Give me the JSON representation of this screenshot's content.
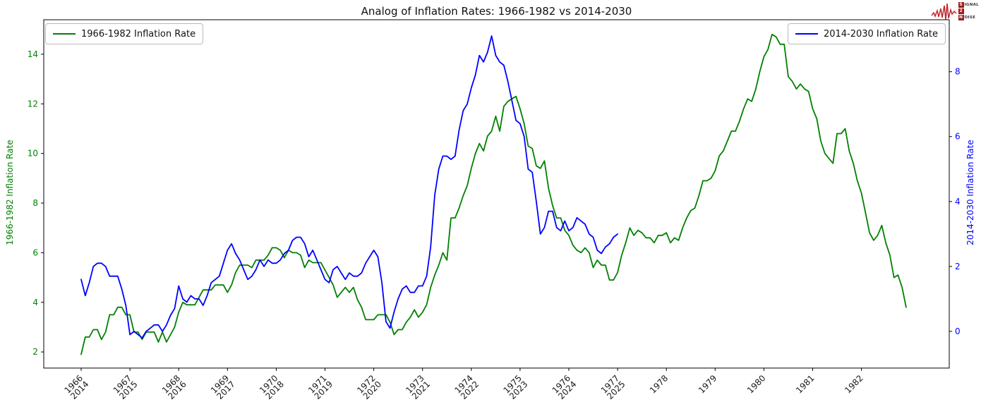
{
  "logo": {
    "line1": {
      "initial": "S",
      "rest": "IGNAL"
    },
    "line2": {
      "initial": "2",
      "rest": ""
    },
    "line3": {
      "initial": "N",
      "rest": "OISE"
    }
  },
  "chart_data": {
    "type": "line",
    "title": "Analog of Inflation Rates: 1966-1982 vs 2014-2030",
    "grid": false,
    "legend": [
      {
        "label": "1966-1982 Inflation Rate",
        "position": "upper left",
        "color": "#008000"
      },
      {
        "label": "2014-2030 Inflation Rate",
        "position": "upper right",
        "color": "#0000ff"
      }
    ],
    "left_axis": {
      "label": "1966-1982 Inflation Rate",
      "color": "#008000",
      "ticks": [
        2,
        4,
        6,
        8,
        10,
        12,
        14
      ],
      "range": [
        1.35,
        15.39
      ]
    },
    "right_axis": {
      "label": "2014-2030 Inflation Rate",
      "color": "#0000ff",
      "ticks": [
        0,
        2,
        4,
        6,
        8
      ],
      "range": [
        -1.13,
        9.6
      ]
    },
    "x_axis": {
      "tick_labels": [
        [
          "1966",
          "2014"
        ],
        [
          "1967",
          "2015"
        ],
        [
          "1968",
          "2016"
        ],
        [
          "1969",
          "2017"
        ],
        [
          "1970",
          "2018"
        ],
        [
          "1971",
          "2019"
        ],
        [
          "1972",
          "2020"
        ],
        [
          "1973",
          "2021"
        ],
        [
          "1974",
          "2022"
        ],
        [
          "1975",
          "2023"
        ],
        [
          "1976",
          "2024"
        ],
        [
          "1977",
          "2025"
        ],
        [
          "1978"
        ],
        [
          "1979"
        ],
        [
          "1980"
        ],
        [
          "1981"
        ],
        [
          "1982"
        ]
      ]
    },
    "series": [
      {
        "name": "1966-1982 Inflation Rate",
        "axis": "left",
        "color": "#008000",
        "start": "1966-01",
        "frequency": "monthly",
        "values": [
          1.9,
          2.6,
          2.6,
          2.9,
          2.9,
          2.5,
          2.8,
          3.5,
          3.5,
          3.8,
          3.8,
          3.5,
          3.5,
          2.8,
          2.8,
          2.5,
          2.8,
          2.8,
          2.8,
          2.4,
          2.8,
          2.4,
          2.7,
          3.0,
          3.6,
          4.0,
          3.9,
          3.9,
          3.9,
          4.2,
          4.5,
          4.5,
          4.5,
          4.7,
          4.7,
          4.7,
          4.4,
          4.7,
          5.2,
          5.5,
          5.5,
          5.5,
          5.4,
          5.7,
          5.7,
          5.7,
          5.9,
          6.2,
          6.2,
          6.1,
          5.8,
          6.1,
          6.0,
          6.0,
          5.9,
          5.4,
          5.7,
          5.6,
          5.6,
          5.6,
          5.3,
          5.0,
          4.7,
          4.2,
          4.4,
          4.6,
          4.4,
          4.6,
          4.1,
          3.8,
          3.3,
          3.3,
          3.3,
          3.5,
          3.5,
          3.5,
          3.2,
          2.7,
          2.9,
          2.9,
          3.2,
          3.4,
          3.7,
          3.4,
          3.6,
          3.9,
          4.6,
          5.1,
          5.5,
          6.0,
          5.7,
          7.4,
          7.4,
          7.8,
          8.3,
          8.7,
          9.4,
          10.0,
          10.4,
          10.1,
          10.7,
          10.9,
          11.5,
          10.9,
          11.9,
          12.1,
          12.2,
          12.3,
          11.8,
          11.2,
          10.3,
          10.2,
          9.5,
          9.4,
          9.7,
          8.6,
          7.9,
          7.4,
          7.4,
          6.9,
          6.7,
          6.3,
          6.1,
          6.0,
          6.2,
          6.0,
          5.4,
          5.7,
          5.5,
          5.5,
          4.9,
          4.9,
          5.2,
          5.9,
          6.4,
          7.0,
          6.7,
          6.9,
          6.8,
          6.6,
          6.6,
          6.4,
          6.7,
          6.7,
          6.8,
          6.4,
          6.6,
          6.5,
          7.0,
          7.4,
          7.7,
          7.8,
          8.3,
          8.9,
          8.9,
          9.0,
          9.3,
          9.9,
          10.1,
          10.5,
          10.9,
          10.9,
          11.3,
          11.8,
          12.2,
          12.1,
          12.6,
          13.3,
          13.9,
          14.2,
          14.8,
          14.7,
          14.4,
          14.4,
          13.1,
          12.9,
          12.6,
          12.8,
          12.6,
          12.5,
          11.8,
          11.4,
          10.5,
          10.0,
          9.8,
          9.6,
          10.8,
          10.8,
          11.0,
          10.1,
          9.6,
          8.9,
          8.4,
          7.6,
          6.8,
          6.5,
          6.7,
          7.1,
          6.4,
          5.9,
          5.0,
          5.1,
          4.6,
          3.8
        ]
      },
      {
        "name": "2014-2030 Inflation Rate",
        "axis": "right",
        "color": "#0000ff",
        "start": "2014-01",
        "frequency": "monthly",
        "values": [
          1.6,
          1.1,
          1.5,
          2.0,
          2.1,
          2.1,
          2.0,
          1.7,
          1.7,
          1.7,
          1.3,
          0.8,
          -0.1,
          0.0,
          -0.1,
          -0.2,
          0.0,
          0.1,
          0.2,
          0.2,
          0.0,
          0.2,
          0.5,
          0.7,
          1.4,
          1.0,
          0.9,
          1.1,
          1.0,
          1.0,
          0.8,
          1.1,
          1.5,
          1.6,
          1.7,
          2.1,
          2.5,
          2.7,
          2.4,
          2.2,
          1.9,
          1.6,
          1.7,
          1.9,
          2.2,
          2.0,
          2.2,
          2.1,
          2.1,
          2.2,
          2.4,
          2.5,
          2.8,
          2.9,
          2.9,
          2.7,
          2.3,
          2.5,
          2.2,
          1.9,
          1.6,
          1.5,
          1.9,
          2.0,
          1.8,
          1.6,
          1.8,
          1.7,
          1.7,
          1.8,
          2.1,
          2.3,
          2.5,
          2.3,
          1.5,
          0.3,
          0.1,
          0.6,
          1.0,
          1.3,
          1.4,
          1.2,
          1.2,
          1.4,
          1.4,
          1.7,
          2.6,
          4.2,
          5.0,
          5.4,
          5.4,
          5.3,
          5.4,
          6.2,
          6.8,
          7.0,
          7.5,
          7.9,
          8.5,
          8.3,
          8.6,
          9.1,
          8.5,
          8.3,
          8.2,
          7.7,
          7.1,
          6.5,
          6.4,
          6.0,
          5.0,
          4.9,
          4.0,
          3.0,
          3.2,
          3.7,
          3.7,
          3.2,
          3.1,
          3.4,
          3.1,
          3.2,
          3.5,
          3.4,
          3.3,
          3.0,
          2.9,
          2.5,
          2.4,
          2.6,
          2.7,
          2.9,
          3.0
        ]
      }
    ]
  }
}
